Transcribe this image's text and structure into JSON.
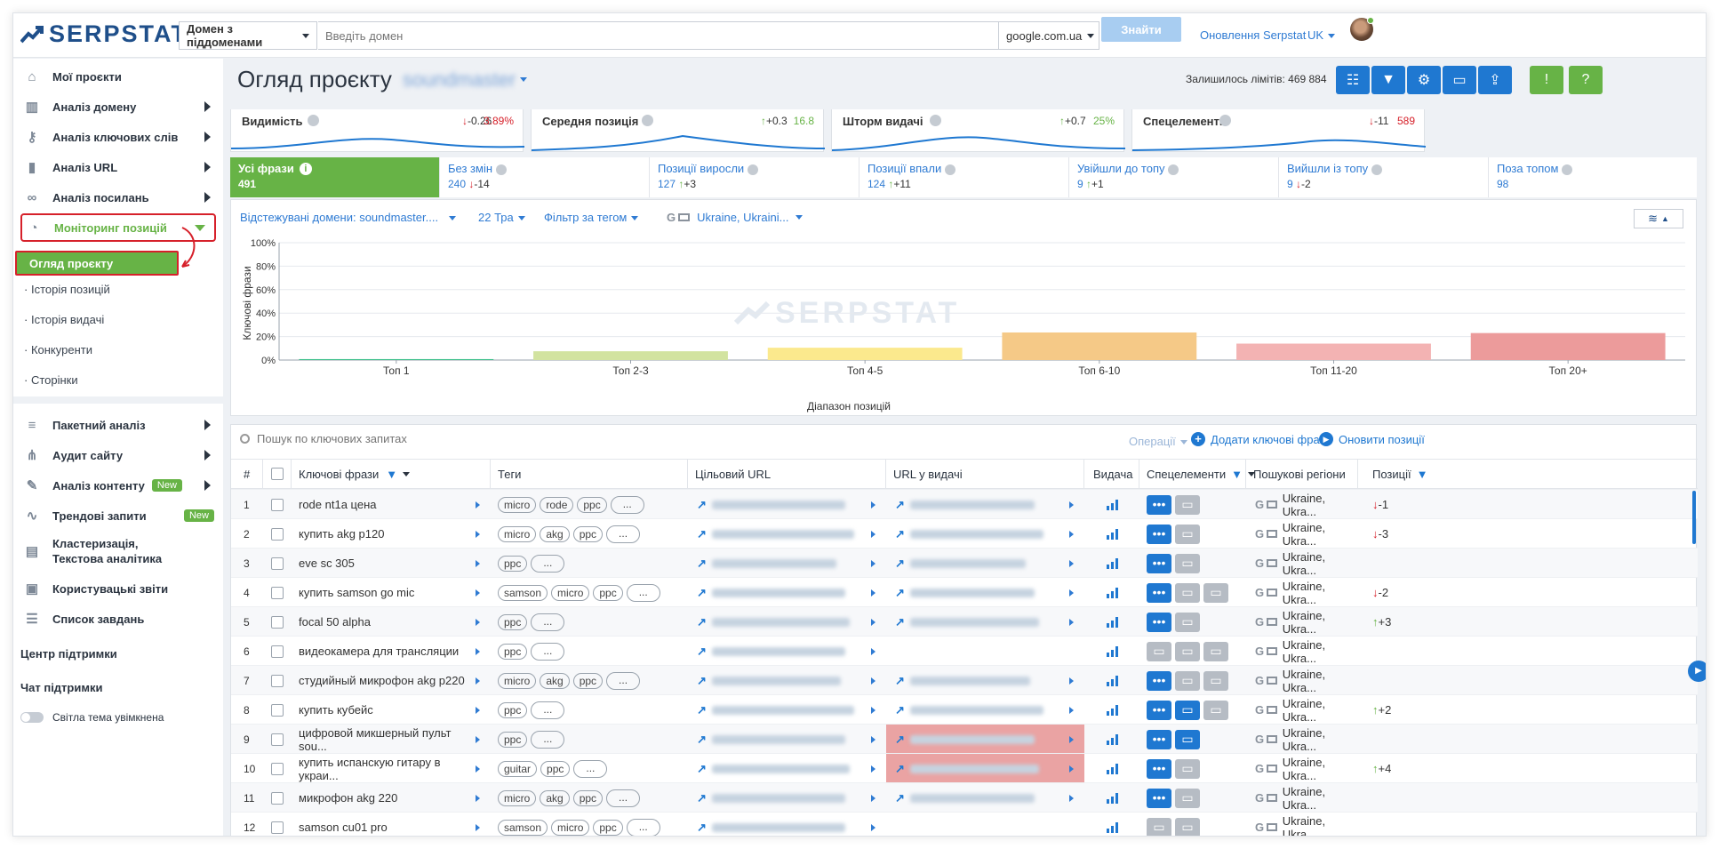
{
  "header": {
    "logo_text": "SERPSTAT",
    "domain_mode": "Домен з піддоменами",
    "search_placeholder": "Введіть домен",
    "search_engine": "google.com.ua",
    "find_button": "Знайти",
    "updates_link": "Оновлення Serpstat",
    "language": "UK"
  },
  "sidebar": {
    "items_top": [
      {
        "label": "Мої проєкти",
        "icon": "home-icon"
      },
      {
        "label": "Аналіз домену",
        "icon": "chart-icon"
      },
      {
        "label": "Аналіз ключових слів",
        "icon": "key-icon"
      },
      {
        "label": "Аналіз URL",
        "icon": "bar-icon"
      },
      {
        "label": "Аналіз посилань",
        "icon": "link-icon"
      },
      {
        "label": "Моніторинг позицій",
        "icon": "history-icon"
      }
    ],
    "subitems": [
      "Огляд проєкту",
      "Історія позицій",
      "Історія видачі",
      "Конкуренти",
      "Сторінки"
    ],
    "items_bottom": [
      {
        "label": "Пакетний аналіз",
        "icon": "database-icon",
        "badge": ""
      },
      {
        "label": "Аудит сайту",
        "icon": "sitemap-icon",
        "badge": ""
      },
      {
        "label": "Аналіз контенту",
        "icon": "pencil-icon",
        "badge": "New"
      },
      {
        "label": "Трендові запити",
        "icon": "trend-icon",
        "badge": "New"
      },
      {
        "label": "Кластеризація, Текстова аналітика",
        "icon": "cluster-icon",
        "badge": ""
      },
      {
        "label": "Користувацькі звіти",
        "icon": "report-icon",
        "badge": ""
      },
      {
        "label": "Список завдань",
        "icon": "tasks-icon",
        "badge": ""
      }
    ],
    "support_center": "Центр підтримки",
    "support_chat": "Чат підтримки",
    "theme_toggle": "Світла тема увімкнена"
  },
  "page": {
    "title": "Огляд проєкту",
    "project_name": "soundmaster",
    "limits": "Залишилось лімітів: 469 884"
  },
  "metrics": [
    {
      "label": "Видимість",
      "delta": "-0.26",
      "value": "3.89%",
      "dir": "down"
    },
    {
      "label": "Середня позиція",
      "delta": "+0.3",
      "value": "16.8",
      "dir": "up"
    },
    {
      "label": "Шторм видачі",
      "delta": "+0.7",
      "value": "25%",
      "dir": "up"
    },
    {
      "label": "Спецелементи",
      "delta": "-11",
      "value": "589",
      "dir": "down"
    }
  ],
  "phrase_tabs": [
    {
      "label": "Усі фрази",
      "count": "491",
      "delta": "",
      "dir": ""
    },
    {
      "label": "Без змін",
      "count": "240",
      "delta": "-14",
      "dir": "down"
    },
    {
      "label": "Позиції виросли",
      "count": "127",
      "delta": "+3",
      "dir": "up"
    },
    {
      "label": "Позиції впали",
      "count": "124",
      "delta": "+11",
      "dir": "up"
    },
    {
      "label": "Увійшли до топу",
      "count": "9",
      "delta": "+1",
      "dir": "up"
    },
    {
      "label": "Вийшли із топу",
      "count": "9",
      "delta": "-2",
      "dir": "down"
    },
    {
      "label": "Поза топом",
      "count": "98",
      "delta": "",
      "dir": ""
    }
  ],
  "filters": {
    "domains": "Відстежувані домени: soundmaster....",
    "date": "22 Тра",
    "tag_filter": "Фільтр за тегом",
    "region": "Ukraine, Ukraini..."
  },
  "chart_data": {
    "type": "bar",
    "categories": [
      "Топ 1",
      "Топ 2-3",
      "Топ 4-5",
      "Топ 6-10",
      "Топ 11-20",
      "Топ 20+"
    ],
    "values": [
      0.8,
      7.5,
      10.5,
      23.5,
      14,
      23
    ],
    "colors": [
      "#3dbf8a",
      "#d2e3a0",
      "#fbe98d",
      "#f5c987",
      "#f3b3b3",
      "#ec9b9b"
    ],
    "xlabel": "Діапазон позицій",
    "ylabel": "Ключові фрази",
    "yticks": [
      "0%",
      "20%",
      "40%",
      "60%",
      "80%",
      "100%"
    ],
    "ylim": [
      0,
      100
    ],
    "watermark": "SERPSTAT"
  },
  "table": {
    "search_placeholder": "Пошук по ключових запитах",
    "operations": "Операції",
    "add_phrases": "Додати ключові фрази",
    "update_positions": "Оновити позиції",
    "columns": [
      "#",
      "Ключові фрази",
      "Теги",
      "Цільовий URL",
      "URL у видачі",
      "Видача",
      "Спецелементи",
      "Пошукові регіони",
      "Позиції"
    ],
    "rows": [
      {
        "n": "1",
        "kw": "rode nt1a цена",
        "tags": [
          "micro",
          "rode",
          "ppc"
        ],
        "serp_url": true,
        "hl": false,
        "sp": "aa",
        "pos": "-1",
        "dir": "down"
      },
      {
        "n": "2",
        "kw": "купить akg p120",
        "tags": [
          "micro",
          "akg",
          "ppc"
        ],
        "serp_url": true,
        "hl": false,
        "sp": "aa",
        "pos": "-3",
        "dir": "down"
      },
      {
        "n": "3",
        "kw": "eve sc 305",
        "tags": [
          "ppc"
        ],
        "serp_url": true,
        "hl": false,
        "sp": "aa",
        "pos": "",
        "dir": ""
      },
      {
        "n": "4",
        "kw": "купить samson go mic",
        "tags": [
          "samson",
          "micro",
          "ppc"
        ],
        "serp_url": true,
        "hl": false,
        "sp": "aai",
        "pos": "-2",
        "dir": "down"
      },
      {
        "n": "5",
        "kw": "focal 50 alpha",
        "tags": [
          "ppc"
        ],
        "serp_url": true,
        "hl": false,
        "sp": "aa",
        "pos": "+3",
        "dir": "up"
      },
      {
        "n": "6",
        "kw": "видеокамера для трансляции",
        "tags": [
          "ppc"
        ],
        "serp_url": false,
        "hl": false,
        "sp": "iii",
        "pos": "",
        "dir": ""
      },
      {
        "n": "7",
        "kw": "студийный микрофон akg p220",
        "tags": [
          "micro",
          "akg",
          "ppc"
        ],
        "serp_url": true,
        "hl": false,
        "sp": "aii",
        "pos": "",
        "dir": ""
      },
      {
        "n": "8",
        "kw": "купить кубейс",
        "tags": [
          "ppc"
        ],
        "serp_url": true,
        "hl": false,
        "sp": "aAi",
        "pos": "+2",
        "dir": "up"
      },
      {
        "n": "9",
        "kw": "цифровой микшерный пульт sou...",
        "tags": [
          "ppc"
        ],
        "serp_url": true,
        "hl": true,
        "sp": "aA",
        "pos": "",
        "dir": ""
      },
      {
        "n": "10",
        "kw": "купить испанскую гитару в украи...",
        "tags": [
          "guitar",
          "ppc"
        ],
        "serp_url": true,
        "hl": true,
        "sp": "aa",
        "pos": "+4",
        "dir": "up"
      },
      {
        "n": "11",
        "kw": "микрофон akg 220",
        "tags": [
          "micro",
          "akg",
          "ppc"
        ],
        "serp_url": true,
        "hl": false,
        "sp": "aa",
        "pos": "",
        "dir": ""
      },
      {
        "n": "12",
        "kw": "samson cu01 pro",
        "tags": [
          "samson",
          "micro",
          "ppc"
        ],
        "serp_url": false,
        "hl": false,
        "sp": "ii",
        "pos": "",
        "dir": ""
      }
    ],
    "region_label": "Ukraine, Ukra...",
    "tag_more": "..."
  }
}
